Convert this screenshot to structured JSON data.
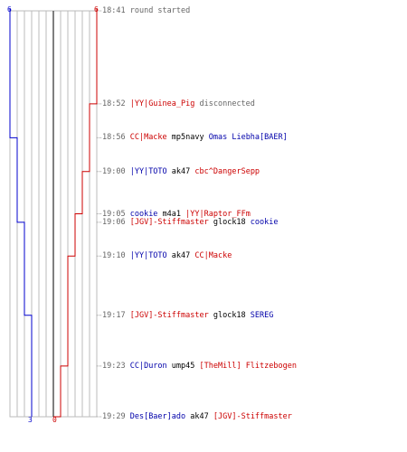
{
  "chart_data": {
    "type": "line",
    "scores": {
      "blue_start": 6,
      "red_start": 6,
      "blue_end": 3,
      "red_end": 0
    },
    "colors": {
      "blue": "#0000cc",
      "red": "#cc0000",
      "grid": "#bbbbbb",
      "center": "#555555",
      "tick": "#999999",
      "timestamp": "#666666",
      "event": "#666666"
    },
    "events": [
      {
        "time": "18:41",
        "attacker": "",
        "attacker_team": "",
        "weapon": "",
        "victim": "",
        "victim_team": "",
        "text": "round started",
        "blue": 6,
        "red": 6
      },
      {
        "time": "18:52",
        "attacker": "|YY|Guinea_Pig",
        "attacker_team": "red",
        "weapon": "",
        "victim": "",
        "victim_team": "",
        "text": "disconnected",
        "blue": 6,
        "red": 5
      },
      {
        "time": "18:56",
        "attacker": "CC|Macke",
        "attacker_team": "red",
        "weapon": "mp5navy",
        "victim": "Omas Liebha[BAER]",
        "victim_team": "blue",
        "text": "",
        "blue": 5,
        "red": 5
      },
      {
        "time": "19:00",
        "attacker": "|YY|TOTO",
        "attacker_team": "blue",
        "weapon": "ak47",
        "victim": "cbc^DangerSepp",
        "victim_team": "red",
        "text": "",
        "blue": 5,
        "red": 4
      },
      {
        "time": "19:05",
        "attacker": "cookie",
        "attacker_team": "blue",
        "weapon": "m4a1",
        "victim": "|YY|Raptor_FFm",
        "victim_team": "red",
        "text": "",
        "blue": 5,
        "red": 3
      },
      {
        "time": "19:06",
        "attacker": "[JGV]-Stiffmaster",
        "attacker_team": "red",
        "weapon": "glock18",
        "victim": "cookie",
        "victim_team": "blue",
        "text": "",
        "blue": 4,
        "red": 3
      },
      {
        "time": "19:10",
        "attacker": "|YY|TOTO",
        "attacker_team": "blue",
        "weapon": "ak47",
        "victim": "CC|Macke",
        "victim_team": "red",
        "text": "",
        "blue": 4,
        "red": 2
      },
      {
        "time": "19:17",
        "attacker": "[JGV]-Stiffmaster",
        "attacker_team": "red",
        "weapon": "glock18",
        "victim": "SEREG",
        "victim_team": "blue",
        "text": "",
        "blue": 3,
        "red": 2
      },
      {
        "time": "19:23",
        "attacker": "CC|Duron",
        "attacker_team": "blue",
        "weapon": "ump45",
        "victim": "[TheMill] Flitzebogen",
        "victim_team": "red",
        "text": "",
        "blue": 3,
        "red": 1
      },
      {
        "time": "19:29",
        "attacker": "Des[Baer]ado",
        "attacker_team": "blue",
        "weapon": "ak47",
        "victim": "[JGV]-Stiffmaster",
        "victim_team": "red",
        "text": "",
        "blue": 3,
        "red": 0
      }
    ]
  }
}
